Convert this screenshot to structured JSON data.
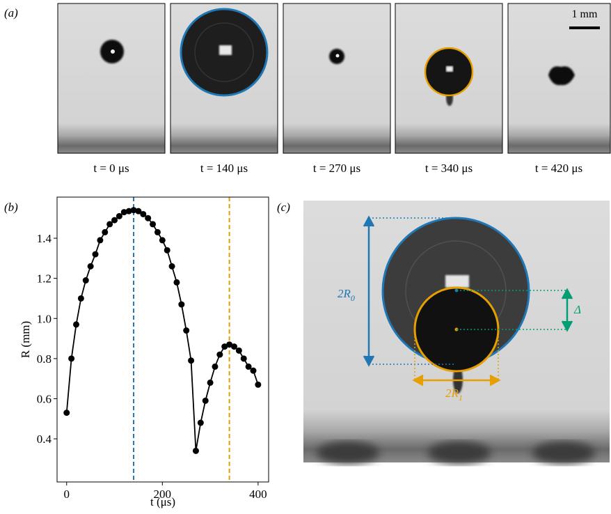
{
  "panel_a": {
    "label": "(a)",
    "scale_bar": "1 mm",
    "captions": [
      "t = 0 μs",
      "t = 140 μs",
      "t = 270 μs",
      "t = 340 μs",
      "t = 420 μs"
    ]
  },
  "panel_b": {
    "label": "(b)"
  },
  "panel_c": {
    "label": "(c)",
    "two_r0": {
      "text": "2R",
      "sub": "0"
    },
    "two_r1": {
      "text": "2R",
      "sub": "1"
    },
    "delta": "Δ"
  },
  "chart_data": {
    "type": "line",
    "xlabel": "t (μs)",
    "ylabel": "R (mm)",
    "color": "#000000",
    "x": [
      0,
      10,
      20,
      30,
      40,
      50,
      60,
      70,
      80,
      90,
      100,
      110,
      120,
      130,
      140,
      150,
      160,
      170,
      180,
      190,
      200,
      210,
      220,
      230,
      240,
      250,
      260,
      270,
      280,
      290,
      300,
      310,
      320,
      330,
      340,
      350,
      360,
      370,
      380,
      390,
      400
    ],
    "values": [
      0.53,
      0.8,
      0.97,
      1.1,
      1.19,
      1.26,
      1.32,
      1.39,
      1.43,
      1.47,
      1.49,
      1.51,
      1.53,
      1.535,
      1.54,
      1.535,
      1.52,
      1.5,
      1.47,
      1.43,
      1.39,
      1.34,
      1.26,
      1.18,
      1.07,
      0.94,
      0.79,
      0.34,
      0.48,
      0.59,
      0.68,
      0.76,
      0.82,
      0.86,
      0.87,
      0.86,
      0.84,
      0.8,
      0.76,
      0.74,
      0.67
    ],
    "xlim": [
      -20,
      422
    ],
    "ylim": [
      0.185,
      1.605
    ],
    "xticks": [
      0,
      200,
      400
    ],
    "yticks": [
      0.4,
      0.6,
      0.8,
      {
        "value": 1,
        "label": "1.0"
      },
      1.2,
      1.4
    ],
    "vlines": [
      {
        "x": 140,
        "color": "#1f77b4"
      },
      {
        "x": 340,
        "color": "#e69f00"
      }
    ]
  }
}
